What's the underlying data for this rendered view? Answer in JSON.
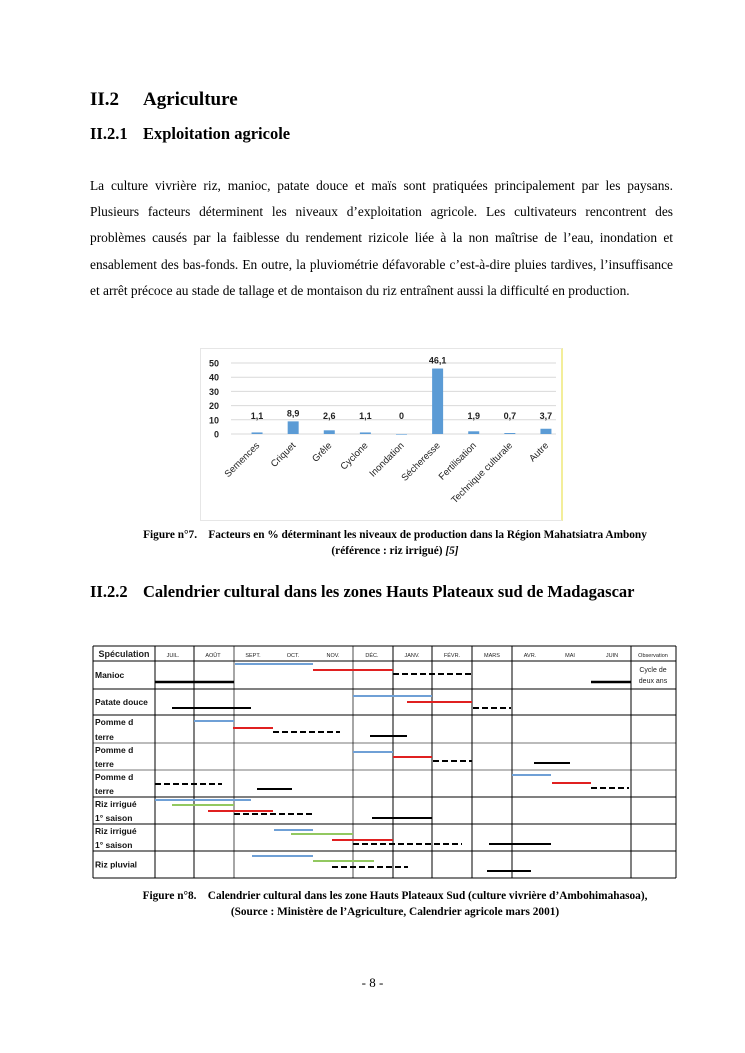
{
  "section": {
    "number": "II.2",
    "title": "Agriculture"
  },
  "subsection1": {
    "number": "II.2.1",
    "title": "Exploitation agricole"
  },
  "paragraph": "La culture vivrière riz, manioc, patate douce et maïs sont pratiquées principalement par les paysans. Plusieurs facteurs déterminent les niveaux d’exploitation agricole. Les cultivateurs rencontrent des problèmes causés par la faiblesse du rendement rizicole liée à la non maîtrise de l’eau, inondation et ensablement des bas-fonds. En outre, la pluviométrie défavorable c’est-à-dire pluies tardives, l’insuffisance et arrêt précoce au stade de tallage et de montaison du riz entraînent aussi la difficulté en production.",
  "chart_data": {
    "type": "bar",
    "categories": [
      "Semences",
      "Criquet",
      "Grêle",
      "Cyclone",
      "Inondation",
      "Sécheresse",
      "Fertilisation",
      "Technique culturale",
      "Autre"
    ],
    "values": [
      1.1,
      8.9,
      2.6,
      1.1,
      0,
      46.1,
      1.9,
      0.7,
      3.7
    ],
    "data_labels": [
      "1,1",
      "8,9",
      "2,6",
      "1,1",
      "0",
      "46,1",
      "1,9",
      "0,7",
      "3,7"
    ],
    "yticks": [
      "0",
      "10",
      "20",
      "30",
      "40",
      "50"
    ],
    "ylim": [
      0,
      50
    ],
    "grid": true,
    "bar_color": "#5b9bd5"
  },
  "figure7": {
    "label": "Figure n°7.",
    "caption_line1": "Facteurs en % déterminant les niveaux de production dans la Région Mahatsiatra Ambony",
    "caption_line2": "(référence : riz irrigué)",
    "caption_ref": "[5]"
  },
  "subsection2": {
    "number": "II.2.2",
    "title": "Calendrier cultural dans les zones Hauts Plateaux sud de Madagascar"
  },
  "calendar": {
    "header": [
      "Spéculation",
      "JUIL.",
      "AOÛT",
      "SEPT.",
      "OCT.",
      "NOV.",
      "DÉC.",
      "JANV.",
      "FÉVR.",
      "MARS",
      "AVR.",
      "MAI",
      "JUIN",
      "Observation"
    ],
    "rows": [
      {
        "name": "Manioc",
        "observation": "Cycle de deux ans"
      },
      {
        "name": "Patate douce",
        "observation": ""
      },
      {
        "name": "Pomme d terre",
        "observation": ""
      },
      {
        "name": "Pomme d terre",
        "observation": ""
      },
      {
        "name": "Pomme d terre",
        "observation": ""
      },
      {
        "name": "Riz irrigué 1° saison",
        "observation": ""
      },
      {
        "name": "Riz irrigué 1° saison",
        "observation": ""
      },
      {
        "name": "Riz pluvial",
        "observation": ""
      }
    ],
    "colors": {
      "blue": "#6fa0d6",
      "red": "#e02020",
      "green": "#92c860",
      "black": "#000000"
    }
  },
  "figure8": {
    "label": "Figure n°8.",
    "caption_line1": "Calendrier cultural dans les zone Hauts Plateaux Sud (culture vivrière d’Ambohimahasoa),",
    "caption_line2": "(Source : Ministère de l’Agriculture, Calendrier agricole mars 2001)"
  },
  "page_number": "- 8 -"
}
